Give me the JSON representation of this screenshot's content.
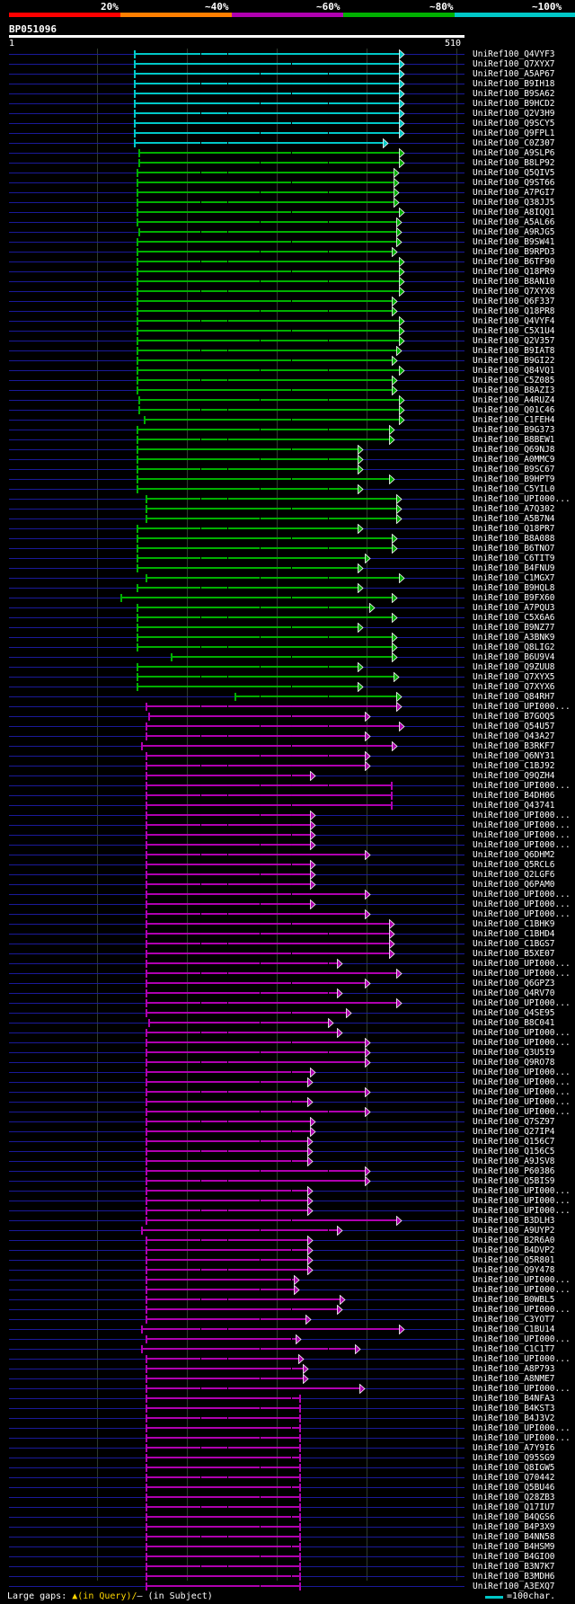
{
  "legend": {
    "labels": [
      "20%",
      "~40%",
      "~60%",
      "~80%",
      "~100%"
    ],
    "colors": [
      "#ff0000",
      "#ff7f00",
      "#b000b0",
      "#00b000",
      "#00c8c8"
    ]
  },
  "query": {
    "id": "BP051096",
    "start": "1",
    "end": "510"
  },
  "footer": {
    "gaps_label": "Large gaps:",
    "gap_query": "▲(in Query)/",
    "gap_subject": "– (in Subject)",
    "scale_label": "=100char."
  },
  "hits": [
    {
      "name": "UniRef100_Q4VYF3",
      "s": 0.275,
      "e": 0.865,
      "c": "#00c8c8",
      "a": "tri"
    },
    {
      "name": "UniRef100_Q7XYX7",
      "s": 0.275,
      "e": 0.865,
      "c": "#00c8c8",
      "a": "tri"
    },
    {
      "name": "UniRef100_A5AP67",
      "s": 0.275,
      "e": 0.865,
      "c": "#00c8c8",
      "a": "tri"
    },
    {
      "name": "UniRef100_B9IH18",
      "s": 0.275,
      "e": 0.865,
      "c": "#00c8c8",
      "a": "tri"
    },
    {
      "name": "UniRef100_B9SA62",
      "s": 0.275,
      "e": 0.865,
      "c": "#00c8c8",
      "a": "tri"
    },
    {
      "name": "UniRef100_B9HCD2",
      "s": 0.275,
      "e": 0.865,
      "c": "#00c8c8",
      "a": "tri"
    },
    {
      "name": "UniRef100_Q2V3H9",
      "s": 0.275,
      "e": 0.865,
      "c": "#00c8c8",
      "a": "tri"
    },
    {
      "name": "UniRef100_Q9SCY5",
      "s": 0.275,
      "e": 0.865,
      "c": "#00c8c8",
      "a": "tri"
    },
    {
      "name": "UniRef100_Q9FPL1",
      "s": 0.275,
      "e": 0.865,
      "c": "#00c8c8",
      "a": "tri"
    },
    {
      "name": "UniRef100_C0Z307",
      "s": 0.275,
      "e": 0.83,
      "c": "#00c8c8",
      "a": "tri"
    },
    {
      "name": "UniRef100_A9SLP6",
      "s": 0.285,
      "e": 0.865,
      "c": "#00b000",
      "a": "tri"
    },
    {
      "name": "UniRef100_B8LP92",
      "s": 0.285,
      "e": 0.865,
      "c": "#00b000",
      "a": "tri"
    },
    {
      "name": "UniRef100_Q5QIV5",
      "s": 0.28,
      "e": 0.855,
      "c": "#00b000",
      "a": "tri"
    },
    {
      "name": "UniRef100_Q9ST66",
      "s": 0.28,
      "e": 0.855,
      "c": "#00b000",
      "a": "tri"
    },
    {
      "name": "UniRef100_A7PGI7",
      "s": 0.28,
      "e": 0.855,
      "c": "#00b000",
      "a": "tri"
    },
    {
      "name": "UniRef100_Q38JJ5",
      "s": 0.28,
      "e": 0.855,
      "c": "#00b000",
      "a": "tri"
    },
    {
      "name": "UniRef100_A8IQQ1",
      "s": 0.28,
      "e": 0.865,
      "c": "#00b000",
      "a": "tri"
    },
    {
      "name": "UniRef100_A5AL66",
      "s": 0.28,
      "e": 0.86,
      "c": "#00b000",
      "a": "tri"
    },
    {
      "name": "UniRef100_A9RJG5",
      "s": 0.285,
      "e": 0.86,
      "c": "#00b000",
      "a": "tri"
    },
    {
      "name": "UniRef100_B9SW41",
      "s": 0.28,
      "e": 0.86,
      "c": "#00b000",
      "a": "tri"
    },
    {
      "name": "UniRef100_B9RPD3",
      "s": 0.28,
      "e": 0.85,
      "c": "#00b000",
      "a": "tri"
    },
    {
      "name": "UniRef100_B6TF90",
      "s": 0.28,
      "e": 0.865,
      "c": "#00b000",
      "a": "tri"
    },
    {
      "name": "UniRef100_Q18PR9",
      "s": 0.28,
      "e": 0.865,
      "c": "#00b000",
      "a": "tri"
    },
    {
      "name": "UniRef100_B8AN10",
      "s": 0.28,
      "e": 0.865,
      "c": "#00b000",
      "a": "tri"
    },
    {
      "name": "UniRef100_Q7XYX8",
      "s": 0.28,
      "e": 0.865,
      "c": "#00b000",
      "a": "tri"
    },
    {
      "name": "UniRef100_Q6F337",
      "s": 0.28,
      "e": 0.85,
      "c": "#00b000",
      "a": "tri"
    },
    {
      "name": "UniRef100_Q18PR8",
      "s": 0.28,
      "e": 0.85,
      "c": "#00b000",
      "a": "tri"
    },
    {
      "name": "UniRef100_Q4VYF4",
      "s": 0.28,
      "e": 0.865,
      "c": "#00b000",
      "a": "tri"
    },
    {
      "name": "UniRef100_C5X1U4",
      "s": 0.28,
      "e": 0.865,
      "c": "#00b000",
      "a": "tri"
    },
    {
      "name": "UniRef100_Q2V357",
      "s": 0.28,
      "e": 0.865,
      "c": "#00b000",
      "a": "tri"
    },
    {
      "name": "UniRef100_B9IAT8",
      "s": 0.28,
      "e": 0.86,
      "c": "#00b000",
      "a": "tri"
    },
    {
      "name": "UniRef100_B9GI22",
      "s": 0.28,
      "e": 0.85,
      "c": "#00b000",
      "a": "tri"
    },
    {
      "name": "UniRef100_Q84VQ1",
      "s": 0.28,
      "e": 0.865,
      "c": "#00b000",
      "a": "tri"
    },
    {
      "name": "UniRef100_C5Z085",
      "s": 0.28,
      "e": 0.85,
      "c": "#00b000",
      "a": "tri"
    },
    {
      "name": "UniRef100_B8AZI3",
      "s": 0.28,
      "e": 0.85,
      "c": "#00b000",
      "a": "tri"
    },
    {
      "name": "UniRef100_A4RUZ4",
      "s": 0.285,
      "e": 0.865,
      "c": "#00b000",
      "a": "tri"
    },
    {
      "name": "UniRef100_Q01C46",
      "s": 0.285,
      "e": 0.865,
      "c": "#00b000",
      "a": "tri"
    },
    {
      "name": "UniRef100_C1FEH4",
      "s": 0.295,
      "e": 0.865,
      "c": "#00b000",
      "a": "tri"
    },
    {
      "name": "UniRef100_B9G373",
      "s": 0.28,
      "e": 0.845,
      "c": "#00b000",
      "a": "tri"
    },
    {
      "name": "UniRef100_B8BEW1",
      "s": 0.28,
      "e": 0.845,
      "c": "#00b000",
      "a": "tri"
    },
    {
      "name": "UniRef100_Q69NJ8",
      "s": 0.28,
      "e": 0.775,
      "c": "#00b000",
      "a": "tri"
    },
    {
      "name": "UniRef100_A0MMC9",
      "s": 0.28,
      "e": 0.775,
      "c": "#00b000",
      "a": "tri"
    },
    {
      "name": "UniRef100_B9SC67",
      "s": 0.28,
      "e": 0.775,
      "c": "#00b000",
      "a": "tri"
    },
    {
      "name": "UniRef100_B9HPT9",
      "s": 0.28,
      "e": 0.845,
      "c": "#00b000",
      "a": "tri"
    },
    {
      "name": "UniRef100_C5YIL0",
      "s": 0.28,
      "e": 0.775,
      "c": "#00b000",
      "a": "tri"
    },
    {
      "name": "UniRef100_UPI000...",
      "s": 0.3,
      "e": 0.86,
      "c": "#00b000",
      "a": "tri"
    },
    {
      "name": "UniRef100_A7Q302",
      "s": 0.3,
      "e": 0.86,
      "c": "#00b000",
      "a": "tri"
    },
    {
      "name": "UniRef100_A5B7N4",
      "s": 0.3,
      "e": 0.86,
      "c": "#00b000",
      "a": "tri"
    },
    {
      "name": "UniRef100_Q18PR7",
      "s": 0.28,
      "e": 0.775,
      "c": "#00b000",
      "a": "tri"
    },
    {
      "name": "UniRef100_B8A088",
      "s": 0.28,
      "e": 0.85,
      "c": "#00b000",
      "a": "tri"
    },
    {
      "name": "UniRef100_B6TNO7",
      "s": 0.28,
      "e": 0.85,
      "c": "#00b000",
      "a": "tri"
    },
    {
      "name": "UniRef100_C6TIT9",
      "s": 0.28,
      "e": 0.79,
      "c": "#00b000",
      "a": "tri"
    },
    {
      "name": "UniRef100_B4FNU9",
      "s": 0.28,
      "e": 0.775,
      "c": "#00b000",
      "a": "tri"
    },
    {
      "name": "UniRef100_C1MGX7",
      "s": 0.3,
      "e": 0.865,
      "c": "#00b000",
      "a": "tri"
    },
    {
      "name": "UniRef100_B9HQL8",
      "s": 0.28,
      "e": 0.775,
      "c": "#00b000",
      "a": "tri"
    },
    {
      "name": "UniRef100_B9FX60",
      "s": 0.245,
      "e": 0.85,
      "c": "#00b000",
      "a": "tri"
    },
    {
      "name": "UniRef100_A7PQU3",
      "s": 0.28,
      "e": 0.8,
      "c": "#00b000",
      "a": "tri"
    },
    {
      "name": "UniRef100_C5X6A6",
      "s": 0.28,
      "e": 0.85,
      "c": "#00b000",
      "a": "tri"
    },
    {
      "name": "UniRef100_B9NZ77",
      "s": 0.28,
      "e": 0.775,
      "c": "#00b000",
      "a": "tri"
    },
    {
      "name": "UniRef100_A3BNK9",
      "s": 0.28,
      "e": 0.85,
      "c": "#00b000",
      "a": "tri"
    },
    {
      "name": "UniRef100_Q8LIG2",
      "s": 0.28,
      "e": 0.85,
      "c": "#00b000",
      "a": "tri"
    },
    {
      "name": "UniRef100_B6U9V4",
      "s": 0.355,
      "e": 0.85,
      "c": "#00b000",
      "a": "tri"
    },
    {
      "name": "UniRef100_Q9ZUU8",
      "s": 0.28,
      "e": 0.775,
      "c": "#00b000",
      "a": "tri"
    },
    {
      "name": "UniRef100_Q7XYX5",
      "s": 0.28,
      "e": 0.855,
      "c": "#00b000",
      "a": "tri"
    },
    {
      "name": "UniRef100_Q7XYX6",
      "s": 0.28,
      "e": 0.775,
      "c": "#00b000",
      "a": "tri"
    },
    {
      "name": "UniRef100_Q84RH7",
      "s": 0.495,
      "e": 0.86,
      "c": "#00b000",
      "a": "tri"
    },
    {
      "name": "UniRef100_UPI000...",
      "s": 0.3,
      "e": 0.86,
      "c": "#b000b0",
      "a": "tri"
    },
    {
      "name": "UniRef100_B7GOQ5",
      "s": 0.305,
      "e": 0.79,
      "c": "#b000b0",
      "a": "tri"
    },
    {
      "name": "UniRef100_Q54U57",
      "s": 0.3,
      "e": 0.865,
      "c": "#b000b0",
      "a": "tri"
    },
    {
      "name": "UniRef100_Q43A27",
      "s": 0.3,
      "e": 0.79,
      "c": "#b000b0",
      "a": "tri"
    },
    {
      "name": "UniRef100_B3RKF7",
      "s": 0.29,
      "e": 0.85,
      "c": "#b000b0",
      "a": "tri"
    },
    {
      "name": "UniRef100_Q6NY31",
      "s": 0.3,
      "e": 0.79,
      "c": "#b000b0",
      "a": "tri"
    },
    {
      "name": "UniRef100_C1BJ92",
      "s": 0.3,
      "e": 0.79,
      "c": "#b000b0",
      "a": "tri"
    },
    {
      "name": "UniRef100_Q9QZH4",
      "s": 0.3,
      "e": 0.67,
      "c": "#b000b0",
      "a": "tri"
    },
    {
      "name": "UniRef100_UPI000...",
      "s": 0.3,
      "e": 0.84,
      "c": "#b000b0",
      "a": "bar"
    },
    {
      "name": "UniRef100_B4DH06",
      "s": 0.3,
      "e": 0.84,
      "c": "#b000b0",
      "a": "bar"
    },
    {
      "name": "UniRef100_Q43741",
      "s": 0.3,
      "e": 0.84,
      "c": "#b000b0",
      "a": "bar"
    },
    {
      "name": "UniRef100_UPI000...",
      "s": 0.3,
      "e": 0.67,
      "c": "#b000b0",
      "a": "tri"
    },
    {
      "name": "UniRef100_UPI000...",
      "s": 0.3,
      "e": 0.67,
      "c": "#b000b0",
      "a": "tri"
    },
    {
      "name": "UniRef100_UPI000...",
      "s": 0.3,
      "e": 0.67,
      "c": "#b000b0",
      "a": "tri"
    },
    {
      "name": "UniRef100_UPI000...",
      "s": 0.3,
      "e": 0.67,
      "c": "#b000b0",
      "a": "tri"
    },
    {
      "name": "UniRef100_Q6DHM2",
      "s": 0.3,
      "e": 0.79,
      "c": "#b000b0",
      "a": "tri"
    },
    {
      "name": "UniRef100_Q5RCL6",
      "s": 0.3,
      "e": 0.67,
      "c": "#b000b0",
      "a": "tri"
    },
    {
      "name": "UniRef100_Q2LGF6",
      "s": 0.3,
      "e": 0.67,
      "c": "#b000b0",
      "a": "tri"
    },
    {
      "name": "UniRef100_Q6PAM0",
      "s": 0.3,
      "e": 0.67,
      "c": "#b000b0",
      "a": "tri"
    },
    {
      "name": "UniRef100_UPI000...",
      "s": 0.3,
      "e": 0.79,
      "c": "#b000b0",
      "a": "tri"
    },
    {
      "name": "UniRef100_UPI000...",
      "s": 0.3,
      "e": 0.67,
      "c": "#b000b0",
      "a": "tri"
    },
    {
      "name": "UniRef100_UPI000...",
      "s": 0.3,
      "e": 0.79,
      "c": "#b000b0",
      "a": "tri"
    },
    {
      "name": "UniRef100_C1BHK9",
      "s": 0.3,
      "e": 0.845,
      "c": "#b000b0",
      "a": "tri"
    },
    {
      "name": "UniRef100_C1BHD4",
      "s": 0.3,
      "e": 0.845,
      "c": "#b000b0",
      "a": "tri"
    },
    {
      "name": "UniRef100_C1BGS7",
      "s": 0.3,
      "e": 0.845,
      "c": "#b000b0",
      "a": "tri"
    },
    {
      "name": "UniRef100_B5XE07",
      "s": 0.3,
      "e": 0.845,
      "c": "#b000b0",
      "a": "tri"
    },
    {
      "name": "UniRef100_UPI000...",
      "s": 0.3,
      "e": 0.73,
      "c": "#b000b0",
      "a": "tri"
    },
    {
      "name": "UniRef100_UPI000...",
      "s": 0.3,
      "e": 0.86,
      "c": "#b000b0",
      "a": "tri"
    },
    {
      "name": "UniRef100_Q6GPZ3",
      "s": 0.3,
      "e": 0.79,
      "c": "#b000b0",
      "a": "tri"
    },
    {
      "name": "UniRef100_Q4RV70",
      "s": 0.3,
      "e": 0.73,
      "c": "#b000b0",
      "a": "tri"
    },
    {
      "name": "UniRef100_UPI000...",
      "s": 0.3,
      "e": 0.86,
      "c": "#b000b0",
      "a": "tri"
    },
    {
      "name": "UniRef100_Q4SE95",
      "s": 0.3,
      "e": 0.75,
      "c": "#b000b0",
      "a": "tri"
    },
    {
      "name": "UniRef100_B8C041",
      "s": 0.305,
      "e": 0.71,
      "c": "#b000b0",
      "a": "tri"
    },
    {
      "name": "UniRef100_UPI000...",
      "s": 0.3,
      "e": 0.73,
      "c": "#b000b0",
      "a": "tri"
    },
    {
      "name": "UniRef100_UPI000...",
      "s": 0.3,
      "e": 0.79,
      "c": "#b000b0",
      "a": "tri"
    },
    {
      "name": "UniRef100_Q3U5I9",
      "s": 0.3,
      "e": 0.79,
      "c": "#b000b0",
      "a": "tri"
    },
    {
      "name": "UniRef100_Q9RO78",
      "s": 0.3,
      "e": 0.79,
      "c": "#b000b0",
      "a": "tri"
    },
    {
      "name": "UniRef100_UPI000...",
      "s": 0.3,
      "e": 0.67,
      "c": "#b000b0",
      "a": "tri"
    },
    {
      "name": "UniRef100_UPI000...",
      "s": 0.3,
      "e": 0.665,
      "c": "#b000b0",
      "a": "tri"
    },
    {
      "name": "UniRef100_UPI000...",
      "s": 0.3,
      "e": 0.79,
      "c": "#b000b0",
      "a": "tri"
    },
    {
      "name": "UniRef100_UPI000...",
      "s": 0.3,
      "e": 0.665,
      "c": "#b000b0",
      "a": "tri"
    },
    {
      "name": "UniRef100_UPI000...",
      "s": 0.3,
      "e": 0.79,
      "c": "#b000b0",
      "a": "tri"
    },
    {
      "name": "UniRef100_Q7SZ97",
      "s": 0.3,
      "e": 0.67,
      "c": "#b000b0",
      "a": "tri"
    },
    {
      "name": "UniRef100_Q27IP4",
      "s": 0.3,
      "e": 0.67,
      "c": "#b000b0",
      "a": "tri"
    },
    {
      "name": "UniRef100_Q156C7",
      "s": 0.3,
      "e": 0.665,
      "c": "#b000b0",
      "a": "tri"
    },
    {
      "name": "UniRef100_Q156C5",
      "s": 0.3,
      "e": 0.665,
      "c": "#b000b0",
      "a": "tri"
    },
    {
      "name": "UniRef100_A9JSV8",
      "s": 0.3,
      "e": 0.665,
      "c": "#b000b0",
      "a": "tri"
    },
    {
      "name": "UniRef100_P60386",
      "s": 0.3,
      "e": 0.79,
      "c": "#b000b0",
      "a": "tri"
    },
    {
      "name": "UniRef100_Q5BIS9",
      "s": 0.3,
      "e": 0.79,
      "c": "#b000b0",
      "a": "tri"
    },
    {
      "name": "UniRef100_UPI000...",
      "s": 0.3,
      "e": 0.665,
      "c": "#b000b0",
      "a": "tri"
    },
    {
      "name": "UniRef100_UPI000...",
      "s": 0.3,
      "e": 0.665,
      "c": "#b000b0",
      "a": "tri"
    },
    {
      "name": "UniRef100_UPI000...",
      "s": 0.3,
      "e": 0.665,
      "c": "#b000b0",
      "a": "tri"
    },
    {
      "name": "UniRef100_B3DLH3",
      "s": 0.3,
      "e": 0.86,
      "c": "#b000b0",
      "a": "tri"
    },
    {
      "name": "UniRef100_A9UYP2",
      "s": 0.29,
      "e": 0.73,
      "c": "#b000b0",
      "a": "tri"
    },
    {
      "name": "UniRef100_B2R6A0",
      "s": 0.3,
      "e": 0.665,
      "c": "#b000b0",
      "a": "tri"
    },
    {
      "name": "UniRef100_B4DVP2",
      "s": 0.3,
      "e": 0.665,
      "c": "#b000b0",
      "a": "tri"
    },
    {
      "name": "UniRef100_Q5R801",
      "s": 0.3,
      "e": 0.665,
      "c": "#b000b0",
      "a": "tri"
    },
    {
      "name": "UniRef100_Q9Y478",
      "s": 0.3,
      "e": 0.665,
      "c": "#b000b0",
      "a": "tri"
    },
    {
      "name": "UniRef100_UPI000...",
      "s": 0.3,
      "e": 0.635,
      "c": "#b000b0",
      "a": "tri"
    },
    {
      "name": "UniRef100_UPI000...",
      "s": 0.3,
      "e": 0.635,
      "c": "#b000b0",
      "a": "tri"
    },
    {
      "name": "UniRef100_B0WBL5",
      "s": 0.3,
      "e": 0.735,
      "c": "#b000b0",
      "a": "tri"
    },
    {
      "name": "UniRef100_UPI000...",
      "s": 0.3,
      "e": 0.73,
      "c": "#b000b0",
      "a": "tri"
    },
    {
      "name": "UniRef100_C3YOT7",
      "s": 0.3,
      "e": 0.66,
      "c": "#b000b0",
      "a": "tri"
    },
    {
      "name": "UniRef100_C1BU14",
      "s": 0.29,
      "e": 0.865,
      "c": "#b000b0",
      "a": "tri"
    },
    {
      "name": "UniRef100_UPI000...",
      "s": 0.3,
      "e": 0.64,
      "c": "#b000b0",
      "a": "tri"
    },
    {
      "name": "UniRef100_C1C1T7",
      "s": 0.29,
      "e": 0.77,
      "c": "#b000b0",
      "a": "tri"
    },
    {
      "name": "UniRef100_UPI000...",
      "s": 0.3,
      "e": 0.645,
      "c": "#b000b0",
      "a": "tri"
    },
    {
      "name": "UniRef100_A8P793",
      "s": 0.3,
      "e": 0.655,
      "c": "#b000b0",
      "a": "tri"
    },
    {
      "name": "UniRef100_A8NME7",
      "s": 0.3,
      "e": 0.655,
      "c": "#b000b0",
      "a": "tri"
    },
    {
      "name": "UniRef100_UPI000...",
      "s": 0.3,
      "e": 0.78,
      "c": "#b000b0",
      "a": "tri"
    },
    {
      "name": "UniRef100_B4NFA3",
      "s": 0.3,
      "e": 0.64,
      "c": "#b000b0",
      "a": "bar"
    },
    {
      "name": "UniRef100_B4KST3",
      "s": 0.3,
      "e": 0.64,
      "c": "#b000b0",
      "a": "bar"
    },
    {
      "name": "UniRef100_B4J3V2",
      "s": 0.3,
      "e": 0.64,
      "c": "#b000b0",
      "a": "bar"
    },
    {
      "name": "UniRef100_UPI000...",
      "s": 0.3,
      "e": 0.64,
      "c": "#b000b0",
      "a": "bar"
    },
    {
      "name": "UniRef100_UPI000...",
      "s": 0.3,
      "e": 0.64,
      "c": "#b000b0",
      "a": "bar"
    },
    {
      "name": "UniRef100_A7Y9I6",
      "s": 0.3,
      "e": 0.64,
      "c": "#b000b0",
      "a": "bar"
    },
    {
      "name": "UniRef100_Q95SG9",
      "s": 0.3,
      "e": 0.64,
      "c": "#b000b0",
      "a": "bar"
    },
    {
      "name": "UniRef100_Q8IGW5",
      "s": 0.3,
      "e": 0.64,
      "c": "#b000b0",
      "a": "bar"
    },
    {
      "name": "UniRef100_Q70442",
      "s": 0.3,
      "e": 0.64,
      "c": "#b000b0",
      "a": "bar"
    },
    {
      "name": "UniRef100_Q5BU46",
      "s": 0.3,
      "e": 0.64,
      "c": "#b000b0",
      "a": "bar"
    },
    {
      "name": "UniRef100_Q28ZB3",
      "s": 0.3,
      "e": 0.64,
      "c": "#b000b0",
      "a": "bar"
    },
    {
      "name": "UniRef100_Q17IU7",
      "s": 0.3,
      "e": 0.64,
      "c": "#b000b0",
      "a": "bar"
    },
    {
      "name": "UniRef100_B4QGS6",
      "s": 0.3,
      "e": 0.64,
      "c": "#b000b0",
      "a": "bar"
    },
    {
      "name": "UniRef100_B4P3X9",
      "s": 0.3,
      "e": 0.64,
      "c": "#b000b0",
      "a": "bar"
    },
    {
      "name": "UniRef100_B4NN58",
      "s": 0.3,
      "e": 0.64,
      "c": "#b000b0",
      "a": "bar"
    },
    {
      "name": "UniRef100_B4HSM9",
      "s": 0.3,
      "e": 0.64,
      "c": "#b000b0",
      "a": "bar"
    },
    {
      "name": "UniRef100_B4GIO0",
      "s": 0.3,
      "e": 0.64,
      "c": "#b000b0",
      "a": "bar"
    },
    {
      "name": "UniRef100_B3N7K7",
      "s": 0.3,
      "e": 0.64,
      "c": "#b000b0",
      "a": "bar"
    },
    {
      "name": "UniRef100_B3MDH6",
      "s": 0.3,
      "e": 0.64,
      "c": "#b000b0",
      "a": "bar"
    },
    {
      "name": "UniRef100_A3EXQ7",
      "s": 0.3,
      "e": 0.64,
      "c": "#b000b0",
      "a": "bar"
    }
  ]
}
